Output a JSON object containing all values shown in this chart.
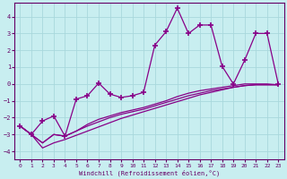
{
  "xlabel": "Windchill (Refroidissement éolien,°C)",
  "bg_color": "#c8eef0",
  "grid_color": "#a8d8dc",
  "line_color": "#880088",
  "xlim": [
    -0.5,
    23.5
  ],
  "ylim": [
    -4.5,
    4.8
  ],
  "xticks": [
    0,
    1,
    2,
    3,
    4,
    5,
    6,
    7,
    8,
    9,
    10,
    11,
    12,
    13,
    14,
    15,
    16,
    17,
    18,
    19,
    20,
    21,
    22,
    23
  ],
  "yticks": [
    -4,
    -3,
    -2,
    -1,
    0,
    1,
    2,
    3,
    4
  ],
  "figsize": [
    3.2,
    2.0
  ],
  "dpi": 100,
  "line_main_y": [
    -2.5,
    -3.0,
    -2.2,
    -1.9,
    -3.1,
    -0.9,
    -0.7,
    0.05,
    -0.6,
    -0.8,
    -0.7,
    -0.5,
    2.3,
    3.1,
    4.5,
    3.0,
    3.5,
    3.5,
    1.05,
    0.0,
    1.4,
    3.0,
    3.0,
    0.0
  ],
  "line_a_y": [
    -2.5,
    -3.0,
    -3.5,
    -3.0,
    -3.1,
    -2.8,
    -2.4,
    -2.1,
    -1.9,
    -1.7,
    -1.55,
    -1.4,
    -1.2,
    -1.0,
    -0.75,
    -0.55,
    -0.4,
    -0.3,
    -0.2,
    -0.1,
    0.0,
    0.0,
    0.0,
    -0.05
  ],
  "line_b_y": [
    -2.5,
    -3.0,
    -3.8,
    -3.5,
    -3.3,
    -3.05,
    -2.8,
    -2.55,
    -2.3,
    -2.05,
    -1.85,
    -1.65,
    -1.45,
    -1.25,
    -1.05,
    -0.85,
    -0.65,
    -0.5,
    -0.35,
    -0.2,
    -0.1,
    -0.05,
    -0.05,
    -0.05
  ],
  "line_c_y": [
    -2.5,
    -3.0,
    -3.5,
    -3.0,
    -3.1,
    -2.8,
    -2.5,
    -2.25,
    -2.0,
    -1.8,
    -1.65,
    -1.5,
    -1.3,
    -1.1,
    -0.9,
    -0.7,
    -0.55,
    -0.4,
    -0.3,
    -0.2,
    -0.1,
    -0.05,
    -0.05,
    -0.05
  ]
}
